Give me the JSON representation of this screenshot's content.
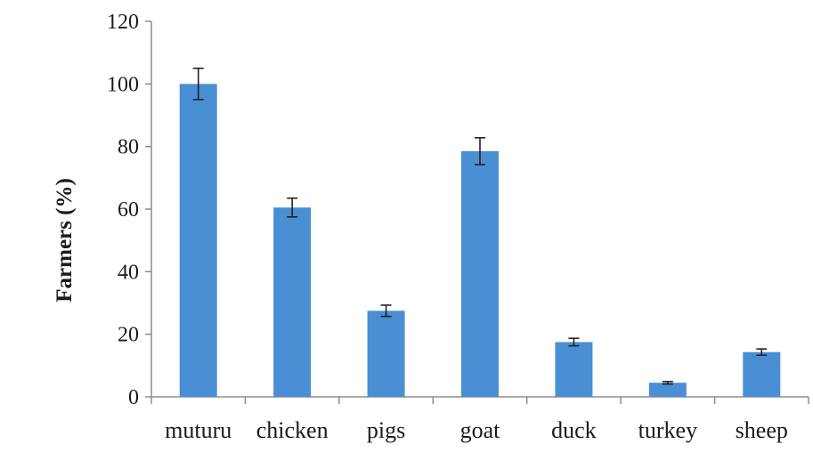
{
  "chart_data": {
    "type": "bar",
    "title": "",
    "xlabel": "",
    "ylabel": "Farmers (%)",
    "categories": [
      "muturu",
      "chicken",
      "pigs",
      "goat",
      "duck",
      "turkey",
      "sheep"
    ],
    "values": [
      100,
      60.5,
      27.5,
      78.5,
      17.5,
      4.5,
      14.3
    ],
    "error": [
      5,
      3,
      1.8,
      4.3,
      1.2,
      0.4,
      1
    ],
    "ylim": [
      0,
      120
    ],
    "yticks": [
      0,
      20,
      40,
      60,
      80,
      100,
      120
    ],
    "grid": false,
    "bar_color": "#4a8fd4",
    "error_color": "#222222",
    "axis_color": "#8c8c8c"
  }
}
